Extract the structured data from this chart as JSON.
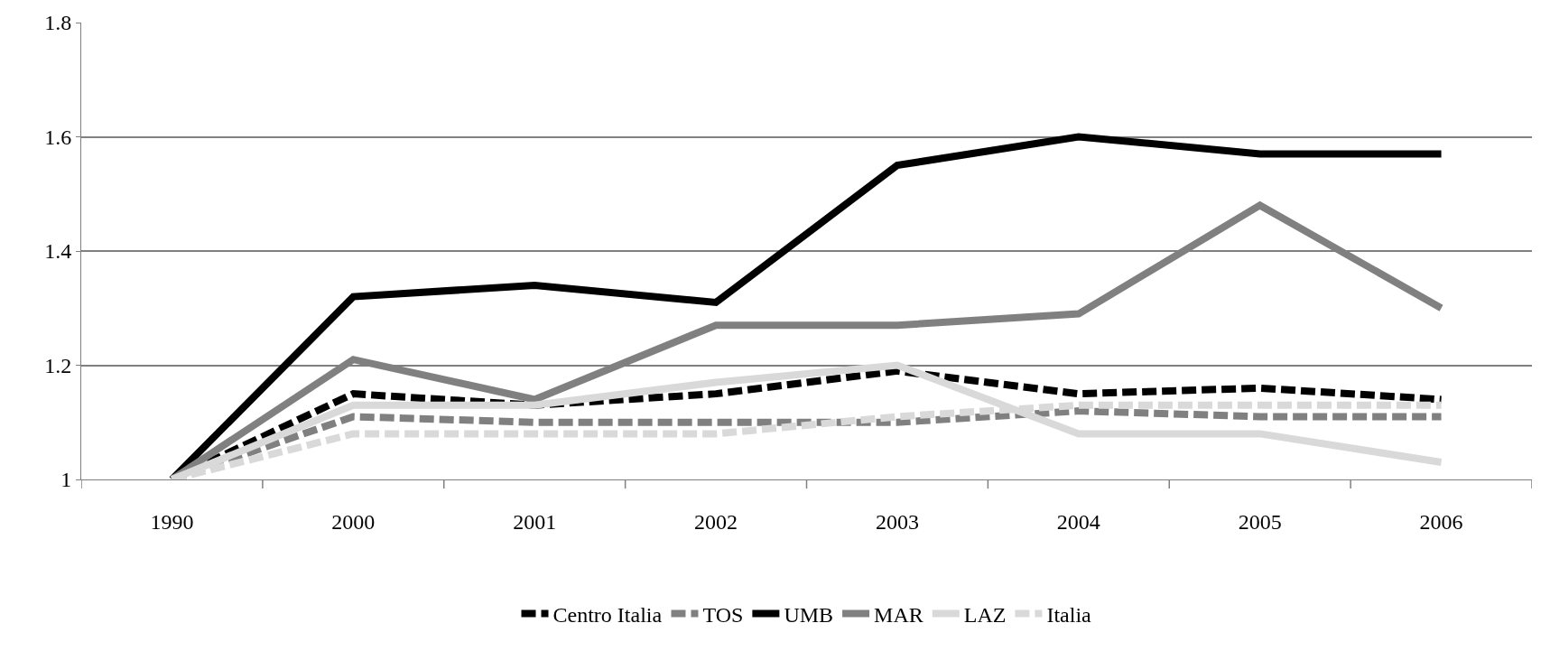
{
  "chart_data": {
    "type": "line",
    "categories": [
      "1990",
      "2000",
      "2001",
      "2002",
      "2003",
      "2004",
      "2005",
      "2006"
    ],
    "series": [
      {
        "name": "Centro Italia",
        "color": "#000000",
        "line_style": "dashed",
        "values": [
          1.0,
          1.15,
          1.13,
          1.15,
          1.19,
          1.15,
          1.16,
          1.14
        ]
      },
      {
        "name": "TOS",
        "color": "#808080",
        "line_style": "dashed",
        "values": [
          1.0,
          1.11,
          1.1,
          1.1,
          1.1,
          1.12,
          1.11,
          1.11
        ]
      },
      {
        "name": "UMB",
        "color": "#000000",
        "line_style": "solid",
        "values": [
          1.0,
          1.32,
          1.34,
          1.31,
          1.55,
          1.6,
          1.57,
          1.57
        ]
      },
      {
        "name": "MAR",
        "color": "#808080",
        "line_style": "solid",
        "values": [
          1.0,
          1.21,
          1.14,
          1.27,
          1.27,
          1.29,
          1.48,
          1.3
        ]
      },
      {
        "name": "LAZ",
        "color": "#d9d9d9",
        "line_style": "solid",
        "values": [
          1.0,
          1.13,
          1.13,
          1.17,
          1.2,
          1.08,
          1.08,
          1.03
        ]
      },
      {
        "name": "Italia",
        "color": "#d9d9d9",
        "line_style": "dashed",
        "values": [
          1.0,
          1.08,
          1.08,
          1.08,
          1.11,
          1.13,
          1.13,
          1.13
        ]
      }
    ],
    "ylim": [
      1,
      1.8
    ],
    "yticks": [
      1,
      1.2,
      1.4,
      1.6,
      1.8
    ],
    "grid": "y",
    "legend": "bottom",
    "marker": "none"
  }
}
